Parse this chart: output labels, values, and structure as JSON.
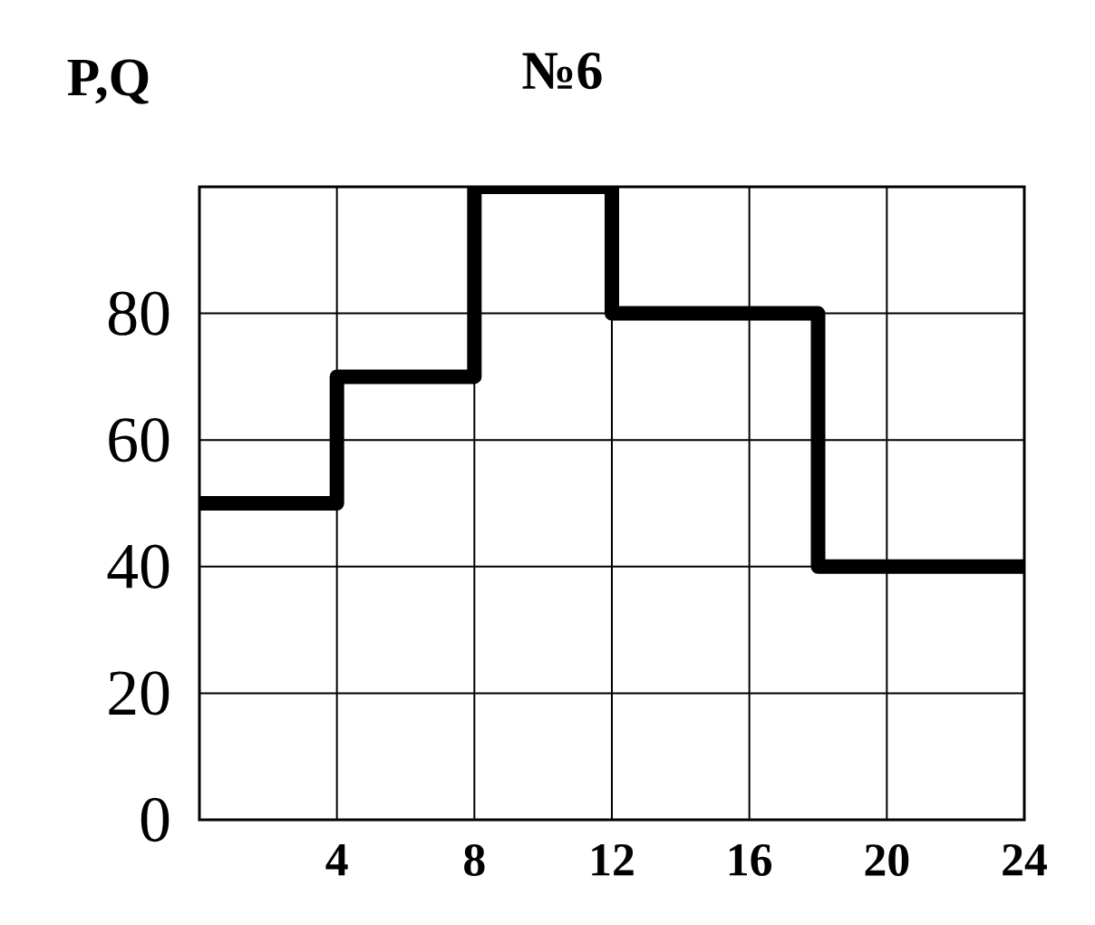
{
  "chart_data": {
    "type": "step",
    "title": "№6",
    "ylabel": "P,Q",
    "x": [
      0,
      4,
      8,
      12,
      18,
      24
    ],
    "series": [
      {
        "color": "#000000",
        "values": [
          50,
          70,
          100,
          80,
          40,
          40
        ]
      }
    ],
    "xlim": [
      0,
      24
    ],
    "ylim": [
      0,
      100
    ],
    "xticks": [
      4,
      8,
      12,
      16,
      20,
      24
    ],
    "yticks": [
      0,
      20,
      40,
      60,
      80,
      {
        "value": 100,
        "label": null
      }
    ],
    "grid": true,
    "marker": "none",
    "line_style": "solid"
  }
}
